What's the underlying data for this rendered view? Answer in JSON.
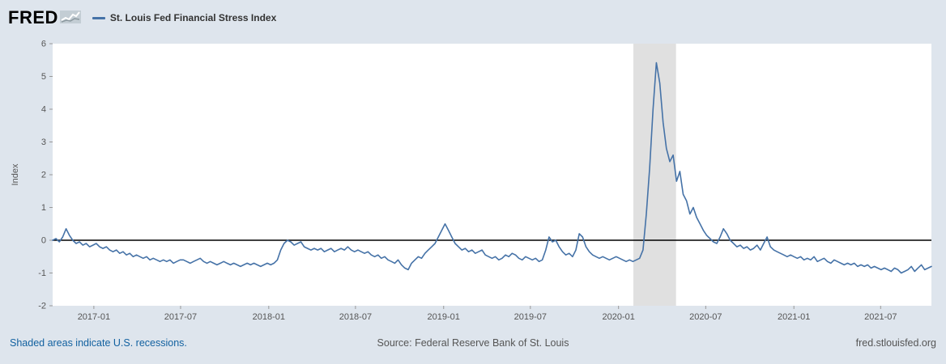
{
  "header": {
    "logo_text": "FRED",
    "legend": {
      "label": "St. Louis Fed Financial Stress Index",
      "marker_color": "#4572a7"
    }
  },
  "footer": {
    "recession_note": "Shaded areas indicate U.S. recessions.",
    "source": "Source: Federal Reserve Bank of St. Louis",
    "site": "fred.stlouisfed.org"
  },
  "chart_data": {
    "type": "line",
    "title": "St. Louis Fed Financial Stress Index",
    "ylabel": "Index",
    "ylim": [
      -2,
      6
    ],
    "y_ticks": [
      -2,
      -1,
      0,
      1,
      2,
      3,
      4,
      5,
      6
    ],
    "zero_line": 0,
    "grid": false,
    "legend_position": "top-left",
    "frequency": "weekly",
    "x_start": "2016-10-07",
    "x_end": "2021-10-15",
    "x_ticks": [
      {
        "date": "2017-01-01",
        "label": "2017-01"
      },
      {
        "date": "2017-07-01",
        "label": "2017-07"
      },
      {
        "date": "2018-01-01",
        "label": "2018-01"
      },
      {
        "date": "2018-07-01",
        "label": "2018-07"
      },
      {
        "date": "2019-01-01",
        "label": "2019-01"
      },
      {
        "date": "2019-07-01",
        "label": "2019-07"
      },
      {
        "date": "2020-01-01",
        "label": "2020-01"
      },
      {
        "date": "2020-07-01",
        "label": "2020-07"
      },
      {
        "date": "2021-01-01",
        "label": "2021-01"
      },
      {
        "date": "2021-07-01",
        "label": "2021-07"
      }
    ],
    "recessions": [
      {
        "start": "2020-02-01",
        "end": "2020-04-30"
      }
    ],
    "line_color": "#4572a7",
    "recession_color": "#e0e0e0",
    "zero_line_color": "#000000",
    "values": [
      0.0,
      0.05,
      -0.05,
      0.1,
      0.35,
      0.15,
      0.0,
      -0.1,
      -0.05,
      -0.15,
      -0.1,
      -0.2,
      -0.15,
      -0.1,
      -0.2,
      -0.25,
      -0.2,
      -0.3,
      -0.35,
      -0.3,
      -0.4,
      -0.35,
      -0.45,
      -0.4,
      -0.5,
      -0.45,
      -0.5,
      -0.55,
      -0.5,
      -0.6,
      -0.55,
      -0.6,
      -0.65,
      -0.6,
      -0.65,
      -0.6,
      -0.7,
      -0.65,
      -0.6,
      -0.6,
      -0.65,
      -0.7,
      -0.65,
      -0.6,
      -0.55,
      -0.65,
      -0.7,
      -0.65,
      -0.7,
      -0.75,
      -0.7,
      -0.65,
      -0.7,
      -0.75,
      -0.7,
      -0.75,
      -0.8,
      -0.75,
      -0.7,
      -0.75,
      -0.7,
      -0.75,
      -0.8,
      -0.75,
      -0.7,
      -0.75,
      -0.7,
      -0.6,
      -0.3,
      -0.1,
      0.0,
      -0.05,
      -0.15,
      -0.1,
      -0.05,
      -0.2,
      -0.25,
      -0.3,
      -0.25,
      -0.3,
      -0.25,
      -0.35,
      -0.3,
      -0.25,
      -0.35,
      -0.3,
      -0.25,
      -0.3,
      -0.2,
      -0.3,
      -0.35,
      -0.3,
      -0.35,
      -0.4,
      -0.35,
      -0.45,
      -0.5,
      -0.45,
      -0.55,
      -0.5,
      -0.6,
      -0.65,
      -0.7,
      -0.6,
      -0.75,
      -0.85,
      -0.9,
      -0.7,
      -0.6,
      -0.5,
      -0.55,
      -0.4,
      -0.3,
      -0.2,
      -0.1,
      0.1,
      0.3,
      0.5,
      0.3,
      0.1,
      -0.1,
      -0.2,
      -0.3,
      -0.25,
      -0.35,
      -0.3,
      -0.4,
      -0.35,
      -0.3,
      -0.45,
      -0.5,
      -0.55,
      -0.5,
      -0.6,
      -0.55,
      -0.45,
      -0.5,
      -0.4,
      -0.45,
      -0.55,
      -0.6,
      -0.5,
      -0.55,
      -0.6,
      -0.55,
      -0.65,
      -0.6,
      -0.3,
      0.1,
      -0.05,
      0.0,
      -0.2,
      -0.35,
      -0.45,
      -0.4,
      -0.5,
      -0.3,
      0.2,
      0.1,
      -0.2,
      -0.35,
      -0.45,
      -0.5,
      -0.55,
      -0.5,
      -0.55,
      -0.6,
      -0.55,
      -0.5,
      -0.55,
      -0.6,
      -0.65,
      -0.6,
      -0.65,
      -0.6,
      -0.55,
      -0.3,
      0.8,
      2.2,
      4.0,
      5.42,
      4.8,
      3.6,
      2.8,
      2.4,
      2.6,
      1.8,
      2.1,
      1.4,
      1.2,
      0.8,
      1.0,
      0.7,
      0.5,
      0.3,
      0.15,
      0.05,
      -0.05,
      -0.1,
      0.1,
      0.35,
      0.2,
      0.0,
      -0.1,
      -0.2,
      -0.15,
      -0.25,
      -0.2,
      -0.3,
      -0.25,
      -0.15,
      -0.3,
      -0.1,
      0.1,
      -0.2,
      -0.3,
      -0.35,
      -0.4,
      -0.45,
      -0.5,
      -0.45,
      -0.5,
      -0.55,
      -0.5,
      -0.6,
      -0.55,
      -0.6,
      -0.5,
      -0.65,
      -0.6,
      -0.55,
      -0.65,
      -0.7,
      -0.6,
      -0.65,
      -0.7,
      -0.75,
      -0.7,
      -0.75,
      -0.7,
      -0.8,
      -0.75,
      -0.8,
      -0.75,
      -0.85,
      -0.8,
      -0.85,
      -0.9,
      -0.85,
      -0.9,
      -0.95,
      -0.85,
      -0.9,
      -1.0,
      -0.95,
      -0.9,
      -0.8,
      -0.95,
      -0.85,
      -0.75,
      -0.9,
      -0.85,
      -0.8
    ]
  }
}
